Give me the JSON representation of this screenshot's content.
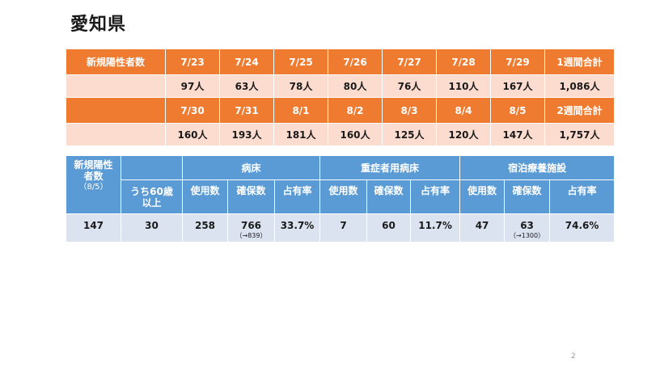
{
  "title": "愛知県",
  "weekly": {
    "label": "新規陽性者数",
    "week1": {
      "dates": [
        "7/23",
        "7/24",
        "7/25",
        "7/26",
        "7/27",
        "7/28",
        "7/29"
      ],
      "total_label": "1週間合計",
      "values": [
        "97人",
        "63人",
        "78人",
        "80人",
        "76人",
        "110人",
        "167人"
      ],
      "total": "1,086人"
    },
    "week2": {
      "dates": [
        "7/30",
        "7/31",
        "8/1",
        "8/2",
        "8/3",
        "8/4",
        "8/5"
      ],
      "total_label": "2週間合計",
      "values": [
        "160人",
        "193人",
        "181人",
        "160人",
        "125人",
        "120人",
        "147人"
      ],
      "total": "1,757人"
    }
  },
  "beds": {
    "new_cases_label": "新規陽性者数",
    "new_cases_date": "（8/5）",
    "over60_label": "うち60歳以上",
    "groups": [
      "病床",
      "重症者用病床",
      "宿泊療養施設"
    ],
    "cols": [
      "使用数",
      "確保数",
      "占有率"
    ],
    "values": {
      "new_cases": "147",
      "over60": "30",
      "byoshou": {
        "used": "258",
        "secured": "766",
        "secured_note": "（→839）",
        "rate": "33.7%"
      },
      "juushou": {
        "used": "7",
        "secured": "60",
        "rate": "11.7%"
      },
      "shukuhaku": {
        "used": "47",
        "secured": "63",
        "secured_note": "（→1300）",
        "rate": "74.6%"
      }
    }
  },
  "page_number": "2"
}
